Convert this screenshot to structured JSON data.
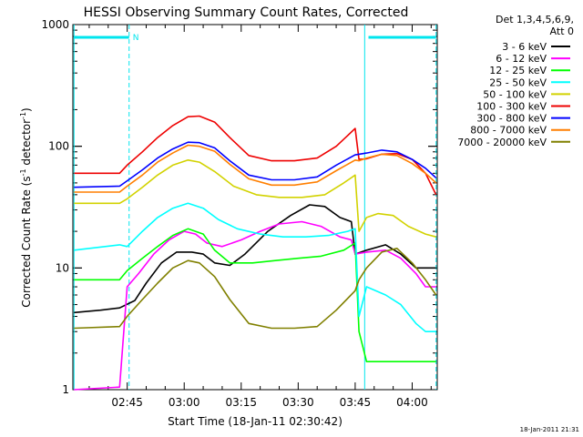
{
  "chart_data": {
    "type": "line",
    "title": "HESSI Observing Summary Count Rates, Corrected",
    "xlabel": "Start Time (18-Jan-11 02:30:42)",
    "ylabel": "Corrected Count Rate (s⁻¹ detector⁻¹)",
    "ylabel_parts": {
      "main": "Corrected Count Rate (s",
      "exp1": "-1",
      "mid": " detector",
      "exp2": "-1",
      "end": ")"
    },
    "x_ticks": [
      "02:45",
      "03:00",
      "03:15",
      "03:30",
      "03:45",
      "04:00"
    ],
    "y_ticks": [
      "1",
      "10",
      "100",
      "1000"
    ],
    "x_range_minutes_after_0230": [
      0.7,
      96.6
    ],
    "ylim": [
      1,
      1000
    ],
    "y_scale": "log",
    "legend_title": [
      "Det 1,3,4,5,6,9,",
      "Att 0"
    ],
    "legend_position": "right",
    "timestamp": "18-Jan-2011 21:31",
    "attenuator_flag_label": "N",
    "x_unit": "minutes after 02:30",
    "series": [
      {
        "name": "3 - 6 keV",
        "color": "#000000",
        "points": [
          [
            1,
            4.3
          ],
          [
            8,
            4.5
          ],
          [
            13,
            4.7
          ],
          [
            17,
            5.4
          ],
          [
            20,
            7.5
          ],
          [
            24,
            11
          ],
          [
            28,
            13.5
          ],
          [
            32,
            13.5
          ],
          [
            35,
            13
          ],
          [
            38,
            11
          ],
          [
            42,
            10.5
          ],
          [
            46,
            13
          ],
          [
            52,
            20
          ],
          [
            58,
            27
          ],
          [
            63,
            33
          ],
          [
            67,
            32
          ],
          [
            71,
            26
          ],
          [
            74,
            24
          ],
          [
            75,
            13
          ],
          [
            78,
            14
          ],
          [
            83,
            15.5
          ],
          [
            87,
            13
          ],
          [
            91,
            10
          ],
          [
            93.5,
            10
          ],
          [
            96.3,
            10
          ]
        ]
      },
      {
        "name": "6 - 12 keV",
        "color": "#ff00ff",
        "points": [
          [
            1,
            1.0
          ],
          [
            13,
            1.05
          ],
          [
            15,
            7
          ],
          [
            18,
            9
          ],
          [
            22,
            13
          ],
          [
            26,
            17
          ],
          [
            30,
            20
          ],
          [
            33,
            19
          ],
          [
            36,
            16
          ],
          [
            40,
            15
          ],
          [
            45,
            17
          ],
          [
            50,
            20
          ],
          [
            55,
            23
          ],
          [
            61,
            24
          ],
          [
            66,
            22
          ],
          [
            71,
            18
          ],
          [
            74,
            17
          ],
          [
            75,
            13
          ],
          [
            78,
            13.5
          ],
          [
            83,
            14
          ],
          [
            87,
            12
          ],
          [
            91,
            9
          ],
          [
            93.5,
            7
          ],
          [
            96.3,
            7
          ]
        ]
      },
      {
        "name": "12 - 25 keV",
        "color": "#00ff00",
        "points": [
          [
            1,
            8
          ],
          [
            13,
            8
          ],
          [
            15,
            9.5
          ],
          [
            19,
            12
          ],
          [
            23,
            15
          ],
          [
            27,
            18.5
          ],
          [
            31,
            21
          ],
          [
            35,
            19
          ],
          [
            38,
            14
          ],
          [
            42,
            11
          ],
          [
            48,
            11
          ],
          [
            54,
            11.5
          ],
          [
            60,
            12
          ],
          [
            66,
            12.5
          ],
          [
            72,
            14
          ],
          [
            75,
            16
          ],
          [
            76,
            3
          ],
          [
            78,
            1.7
          ],
          [
            83,
            1.7
          ],
          [
            87,
            1.7
          ],
          [
            91,
            1.7
          ],
          [
            93.5,
            1.7
          ],
          [
            96.3,
            1.7
          ]
        ]
      },
      {
        "name": "25 - 50 keV",
        "color": "#00ffff",
        "points": [
          [
            1,
            14
          ],
          [
            13,
            15.5
          ],
          [
            15,
            15
          ],
          [
            19,
            20
          ],
          [
            23,
            26
          ],
          [
            27,
            31
          ],
          [
            31,
            34
          ],
          [
            35,
            31
          ],
          [
            39,
            25
          ],
          [
            44,
            21
          ],
          [
            50,
            19
          ],
          [
            56,
            18
          ],
          [
            62,
            18
          ],
          [
            68,
            18.5
          ],
          [
            73,
            20
          ],
          [
            75,
            21
          ],
          [
            76,
            4
          ],
          [
            78,
            7
          ],
          [
            83,
            6
          ],
          [
            87,
            5
          ],
          [
            91,
            3.5
          ],
          [
            93.5,
            3
          ],
          [
            96.3,
            3
          ]
        ]
      },
      {
        "name": "50 - 100 keV",
        "color": "#d2d200",
        "points": [
          [
            1,
            34
          ],
          [
            13,
            34
          ],
          [
            15,
            37
          ],
          [
            19,
            46
          ],
          [
            23,
            58
          ],
          [
            27,
            70
          ],
          [
            31,
            77
          ],
          [
            34,
            74
          ],
          [
            38,
            62
          ],
          [
            43,
            47
          ],
          [
            49,
            40
          ],
          [
            55,
            38
          ],
          [
            61,
            38
          ],
          [
            67,
            40
          ],
          [
            72,
            50
          ],
          [
            75,
            58
          ],
          [
            76,
            20
          ],
          [
            78,
            26
          ],
          [
            81,
            28
          ],
          [
            85,
            27
          ],
          [
            89,
            22
          ],
          [
            93.5,
            19
          ],
          [
            96.3,
            18
          ]
        ]
      },
      {
        "name": "100 - 300 keV",
        "color": "#ee0000",
        "points": [
          [
            1,
            60
          ],
          [
            13,
            60
          ],
          [
            15,
            70
          ],
          [
            19,
            90
          ],
          [
            23,
            118
          ],
          [
            27,
            148
          ],
          [
            31,
            175
          ],
          [
            34,
            177
          ],
          [
            38,
            158
          ],
          [
            42,
            118
          ],
          [
            47,
            84
          ],
          [
            53,
            76
          ],
          [
            59,
            76
          ],
          [
            65,
            80
          ],
          [
            70,
            100
          ],
          [
            75,
            140
          ],
          [
            76,
            78
          ],
          [
            78,
            79
          ],
          [
            82,
            86
          ],
          [
            86,
            87
          ],
          [
            90,
            78
          ],
          [
            93.5,
            60
          ],
          [
            96.3,
            40
          ]
        ]
      },
      {
        "name": "300 - 800 keV",
        "color": "#0000ff",
        "points": [
          [
            1,
            46
          ],
          [
            13,
            47
          ],
          [
            15,
            52
          ],
          [
            19,
            64
          ],
          [
            23,
            80
          ],
          [
            27,
            95
          ],
          [
            31,
            108
          ],
          [
            34,
            107
          ],
          [
            38,
            97
          ],
          [
            42,
            76
          ],
          [
            47,
            58
          ],
          [
            53,
            53
          ],
          [
            59,
            53
          ],
          [
            65,
            56
          ],
          [
            70,
            70
          ],
          [
            75,
            85
          ],
          [
            76,
            86
          ],
          [
            78,
            88
          ],
          [
            82,
            93
          ],
          [
            86,
            90
          ],
          [
            90,
            78
          ],
          [
            93.5,
            66
          ],
          [
            96.3,
            55
          ]
        ]
      },
      {
        "name": "800 - 7000 keV",
        "color": "#ff7f00",
        "points": [
          [
            1,
            42
          ],
          [
            13,
            42
          ],
          [
            15,
            47
          ],
          [
            19,
            58
          ],
          [
            23,
            74
          ],
          [
            27,
            88
          ],
          [
            31,
            102
          ],
          [
            34,
            100
          ],
          [
            38,
            91
          ],
          [
            42,
            71
          ],
          [
            47,
            54
          ],
          [
            53,
            48
          ],
          [
            59,
            48
          ],
          [
            65,
            51
          ],
          [
            70,
            63
          ],
          [
            75,
            77
          ],
          [
            76,
            76
          ],
          [
            78,
            80
          ],
          [
            82,
            86
          ],
          [
            86,
            84
          ],
          [
            90,
            72
          ],
          [
            93.5,
            60
          ],
          [
            96.3,
            50
          ]
        ]
      },
      {
        "name": "7000 - 20000 keV",
        "color": "#808000",
        "points": [
          [
            1,
            3.2
          ],
          [
            13,
            3.3
          ],
          [
            15,
            4
          ],
          [
            19,
            5.5
          ],
          [
            23,
            7.5
          ],
          [
            27,
            10
          ],
          [
            31,
            11.5
          ],
          [
            34,
            11
          ],
          [
            38,
            8.5
          ],
          [
            42,
            5.5
          ],
          [
            47,
            3.5
          ],
          [
            53,
            3.2
          ],
          [
            59,
            3.2
          ],
          [
            65,
            3.3
          ],
          [
            70,
            4.5
          ],
          [
            75,
            6.5
          ],
          [
            76,
            8
          ],
          [
            78,
            10
          ],
          [
            82,
            13.5
          ],
          [
            86,
            14.5
          ],
          [
            90,
            11
          ],
          [
            93.5,
            8
          ],
          [
            96.3,
            6
          ]
        ]
      }
    ],
    "annotations": {
      "attenuator_bars": [
        [
          1,
          15.5
        ],
        [
          78.5,
          96.3
        ]
      ],
      "solid_markers": [
        1,
        77.5
      ],
      "dashed_markers": [
        15.5,
        96.3
      ]
    },
    "grid": false
  }
}
